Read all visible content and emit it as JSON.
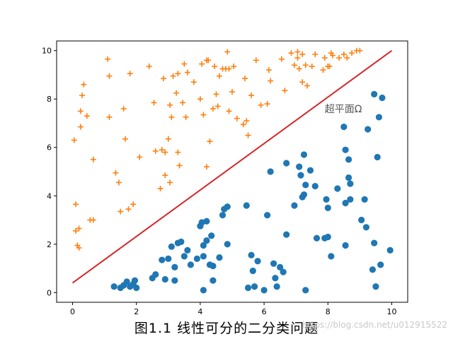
{
  "caption": "图1.1 线性可分的二分类问题",
  "watermark": "https://blog.csdn.net/u012915522",
  "chart_data": {
    "type": "scatter",
    "title": "",
    "xlabel": "",
    "ylabel": "",
    "xlim": [
      -0.5,
      10.5
    ],
    "ylim": [
      -0.4,
      10.4
    ],
    "xticks": [
      "0",
      "2",
      "4",
      "6",
      "8",
      "10"
    ],
    "yticks": [
      "0",
      "2",
      "4",
      "6",
      "8",
      "10"
    ],
    "grid": false,
    "annotation": {
      "text": "超平面Ω",
      "x": 7.9,
      "y": 7.4
    },
    "line": {
      "name": "",
      "color": "#d62728",
      "x": [
        0,
        10
      ],
      "y": [
        0.4,
        10
      ]
    },
    "series": [
      {
        "name": "",
        "marker": "circle",
        "color": "#1f77b4",
        "points": [
          [
            1.3,
            0.25
          ],
          [
            1.5,
            0.2
          ],
          [
            1.6,
            0.3
          ],
          [
            1.7,
            0.45
          ],
          [
            1.8,
            0.25
          ],
          [
            1.9,
            0.35
          ],
          [
            1.95,
            0.5
          ],
          [
            2.0,
            0.2
          ],
          [
            2.5,
            0.6
          ],
          [
            2.6,
            0.75
          ],
          [
            2.8,
            1.35
          ],
          [
            2.9,
            0.55
          ],
          [
            3.0,
            1.4
          ],
          [
            3.1,
            1.9
          ],
          [
            3.2,
            1.05
          ],
          [
            3.2,
            0.5
          ],
          [
            3.3,
            2.05
          ],
          [
            3.4,
            2.1
          ],
          [
            3.5,
            1.5
          ],
          [
            3.6,
            1.75
          ],
          [
            3.7,
            1.15
          ],
          [
            3.9,
            1.4
          ],
          [
            4.0,
            2.75
          ],
          [
            4.05,
            2.9
          ],
          [
            4.1,
            1.95
          ],
          [
            4.1,
            1.5
          ],
          [
            4.1,
            0.1
          ],
          [
            4.2,
            2.15
          ],
          [
            4.2,
            2.95
          ],
          [
            4.3,
            1.15
          ],
          [
            4.35,
            2.35
          ],
          [
            4.4,
            1.1
          ],
          [
            4.4,
            0.5
          ],
          [
            4.6,
            1.45
          ],
          [
            4.7,
            3.2
          ],
          [
            4.75,
            3.45
          ],
          [
            4.85,
            3.55
          ],
          [
            4.85,
            2.0
          ],
          [
            5.45,
            3.6
          ],
          [
            5.5,
            0.2
          ],
          [
            5.6,
            1.55
          ],
          [
            5.65,
            0.9
          ],
          [
            5.7,
            0.25
          ],
          [
            5.8,
            1.3
          ],
          [
            6.0,
            0.1
          ],
          [
            6.1,
            3.2
          ],
          [
            6.2,
            5.0
          ],
          [
            6.3,
            1.2
          ],
          [
            6.35,
            0.6
          ],
          [
            6.4,
            0.25
          ],
          [
            6.5,
            1.05
          ],
          [
            6.6,
            0.85
          ],
          [
            6.7,
            5.35
          ],
          [
            6.7,
            2.4
          ],
          [
            6.95,
            3.6
          ],
          [
            7.1,
            5.2
          ],
          [
            7.15,
            4.85
          ],
          [
            7.2,
            3.95
          ],
          [
            7.25,
            4.05
          ],
          [
            7.25,
            5.7
          ],
          [
            7.3,
            4.45
          ],
          [
            7.3,
            0.1
          ],
          [
            7.45,
            5.05
          ],
          [
            7.6,
            4.4
          ],
          [
            7.65,
            2.25
          ],
          [
            7.9,
            2.25
          ],
          [
            7.95,
            3.85
          ],
          [
            8.0,
            3.5
          ],
          [
            8.0,
            2.3
          ],
          [
            8.1,
            1.5
          ],
          [
            8.3,
            4.3
          ],
          [
            8.5,
            6.85
          ],
          [
            8.55,
            5.9
          ],
          [
            8.55,
            3.7
          ],
          [
            8.55,
            1.95
          ],
          [
            8.65,
            5.5
          ],
          [
            8.65,
            4.75
          ],
          [
            8.7,
            4.5
          ],
          [
            8.7,
            3.85
          ],
          [
            9.05,
            3.0
          ],
          [
            9.15,
            3.85
          ],
          [
            9.2,
            2.7
          ],
          [
            9.25,
            6.75
          ],
          [
            9.4,
            0.95
          ],
          [
            9.45,
            8.2
          ],
          [
            9.45,
            2.05
          ],
          [
            9.5,
            0.25
          ],
          [
            9.55,
            5.6
          ],
          [
            9.6,
            7.25
          ],
          [
            9.65,
            1.15
          ],
          [
            9.7,
            8.05
          ],
          [
            9.95,
            1.75
          ]
        ]
      },
      {
        "name": "",
        "marker": "plus",
        "color": "#ff7f0e",
        "points": [
          [
            0.05,
            6.3
          ],
          [
            0.1,
            3.65
          ],
          [
            0.1,
            2.55
          ],
          [
            0.15,
            1.95
          ],
          [
            0.2,
            1.85
          ],
          [
            0.2,
            2.65
          ],
          [
            0.25,
            6.85
          ],
          [
            0.25,
            7.5
          ],
          [
            0.3,
            8.15
          ],
          [
            0.35,
            8.6
          ],
          [
            0.45,
            7.3
          ],
          [
            0.55,
            3.0
          ],
          [
            0.65,
            3.0
          ],
          [
            0.65,
            5.5
          ],
          [
            1.1,
            9.65
          ],
          [
            1.15,
            8.95
          ],
          [
            1.15,
            7.25
          ],
          [
            1.35,
            4.95
          ],
          [
            1.45,
            4.55
          ],
          [
            1.5,
            3.35
          ],
          [
            1.6,
            7.6
          ],
          [
            1.65,
            6.35
          ],
          [
            1.75,
            3.45
          ],
          [
            1.8,
            9.05
          ],
          [
            1.9,
            3.65
          ],
          [
            2.1,
            5.6
          ],
          [
            2.4,
            9.35
          ],
          [
            2.55,
            7.85
          ],
          [
            2.6,
            5.85
          ],
          [
            2.75,
            4.3
          ],
          [
            2.8,
            5.9
          ],
          [
            2.85,
            8.85
          ],
          [
            2.9,
            4.85
          ],
          [
            2.9,
            5.8
          ],
          [
            3.0,
            6.35
          ],
          [
            3.05,
            7.75
          ],
          [
            3.05,
            4.55
          ],
          [
            3.1,
            7.25
          ],
          [
            3.15,
            8.95
          ],
          [
            3.25,
            8.25
          ],
          [
            3.3,
            9.05
          ],
          [
            3.3,
            5.8
          ],
          [
            3.35,
            5.25
          ],
          [
            3.45,
            7.85
          ],
          [
            3.5,
            9.45
          ],
          [
            3.55,
            7.25
          ],
          [
            3.6,
            9.1
          ],
          [
            3.8,
            8.7
          ],
          [
            4.0,
            8.0
          ],
          [
            4.05,
            9.45
          ],
          [
            4.1,
            7.35
          ],
          [
            4.2,
            9.6
          ],
          [
            4.2,
            5.2
          ],
          [
            4.25,
            9.6
          ],
          [
            4.3,
            6.25
          ],
          [
            4.4,
            7.6
          ],
          [
            4.45,
            9.35
          ],
          [
            4.5,
            8.2
          ],
          [
            4.55,
            7.7
          ],
          [
            4.6,
            8.95
          ],
          [
            4.7,
            9.25
          ],
          [
            4.8,
            9.25
          ],
          [
            4.85,
            9.95
          ],
          [
            4.9,
            9.25
          ],
          [
            4.9,
            7.5
          ],
          [
            5.05,
            9.35
          ],
          [
            5.0,
            8.3
          ],
          [
            5.15,
            7.2
          ],
          [
            5.35,
            6.95
          ],
          [
            5.4,
            8.85
          ],
          [
            5.45,
            7.1
          ],
          [
            5.5,
            6.5
          ],
          [
            5.6,
            8.15
          ],
          [
            5.75,
            9.6
          ],
          [
            5.9,
            7.75
          ],
          [
            6.1,
            7.8
          ],
          [
            6.15,
            9.2
          ],
          [
            6.2,
            8.75
          ],
          [
            6.55,
            9.65
          ],
          [
            6.65,
            8.35
          ],
          [
            6.85,
            9.9
          ],
          [
            6.95,
            9.4
          ],
          [
            7.05,
            9.95
          ],
          [
            7.05,
            9.7
          ],
          [
            7.1,
            9.25
          ],
          [
            7.2,
            9.85
          ],
          [
            7.3,
            9.4
          ],
          [
            7.35,
            8.55
          ],
          [
            7.2,
            8.7
          ],
          [
            7.5,
            9.35
          ],
          [
            7.6,
            9.85
          ],
          [
            7.85,
            9.2
          ],
          [
            7.9,
            9.7
          ],
          [
            8.0,
            9.35
          ],
          [
            8.05,
            9.35
          ],
          [
            8.1,
            9.9
          ],
          [
            8.15,
            9.8
          ],
          [
            8.35,
            9.7
          ],
          [
            8.5,
            9.85
          ],
          [
            8.6,
            9.7
          ],
          [
            8.75,
            9.9
          ],
          [
            8.9,
            10.0
          ],
          [
            9.0,
            10.0
          ]
        ]
      }
    ]
  }
}
